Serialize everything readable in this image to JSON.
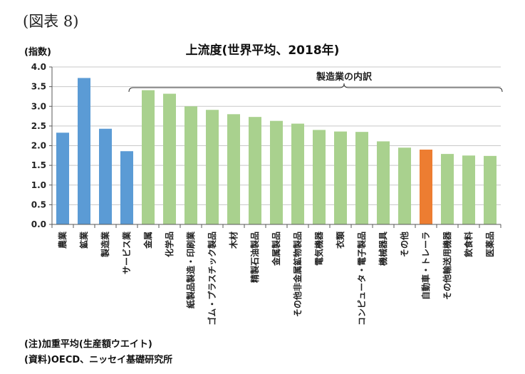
{
  "figure_label": "(図表 8)",
  "notes": {
    "note1": "(注)加重平均(生産額ウエイト)",
    "note2": "(資料)OECD、ニッセイ基礎研究所"
  },
  "colors": {
    "primary": "#5b9bd5",
    "manufacturing": "#a9d18e",
    "highlight": "#ed7d31",
    "axis": "#595959",
    "grid": "#c8c8c8"
  },
  "chart_data": {
    "type": "bar",
    "title": "上流度(世界平均、2018年)",
    "ylabel": "(指数)",
    "xlabel": "",
    "ylim": [
      0,
      4.0
    ],
    "yticks": [
      "0.0",
      "0.5",
      "1.0",
      "1.5",
      "2.0",
      "2.5",
      "3.0",
      "3.5",
      "4.0"
    ],
    "grid": true,
    "bracket_label": "製造業の内訳",
    "categories": [
      "農業",
      "鉱業",
      "製造業",
      "サービス業",
      "金属",
      "化学品",
      "紙製品製造・印刷業",
      "ゴム・プラスチック製品",
      "木材",
      "精製石油製品",
      "金属製品",
      "その他非金属鉱物製品",
      "電気機器",
      "衣類",
      "コンピュータ・電子製品",
      "機械器具",
      "その他",
      "自動車・トレーラ",
      "その他輸送用機器",
      "飲食料",
      "医薬品"
    ],
    "values": [
      2.33,
      3.72,
      2.43,
      1.86,
      3.41,
      3.32,
      3.0,
      2.91,
      2.8,
      2.73,
      2.63,
      2.56,
      2.4,
      2.36,
      2.35,
      2.11,
      1.95,
      1.9,
      1.79,
      1.75,
      1.74
    ],
    "groups": [
      "primary",
      "primary",
      "primary",
      "primary",
      "manufacturing",
      "manufacturing",
      "manufacturing",
      "manufacturing",
      "manufacturing",
      "manufacturing",
      "manufacturing",
      "manufacturing",
      "manufacturing",
      "manufacturing",
      "manufacturing",
      "manufacturing",
      "manufacturing",
      "highlight",
      "manufacturing",
      "manufacturing",
      "manufacturing"
    ]
  }
}
